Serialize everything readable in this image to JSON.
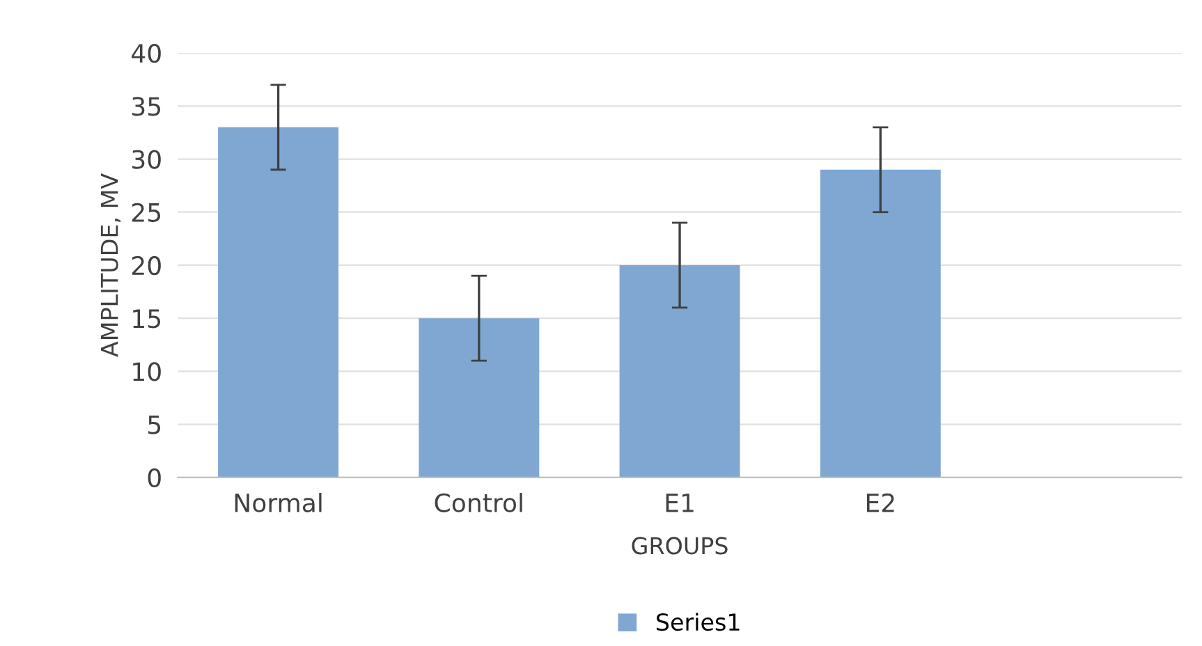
{
  "chart_data": {
    "type": "bar",
    "xlabel": "GROUPS",
    "ylabel": "AMPLITUDE, MV",
    "categories": [
      "Normal",
      "Control",
      "E1",
      "E2",
      null
    ],
    "series": [
      {
        "name": "Series1",
        "color": "#7fa7d2",
        "values": [
          33,
          15,
          20,
          29,
          null
        ],
        "errors": [
          4,
          4,
          4,
          4,
          null
        ]
      }
    ],
    "ylim": [
      0,
      40
    ],
    "yticks": [
      0,
      5,
      10,
      15,
      20,
      25,
      30,
      35,
      40
    ],
    "grid": "y",
    "legend": "bottom"
  }
}
